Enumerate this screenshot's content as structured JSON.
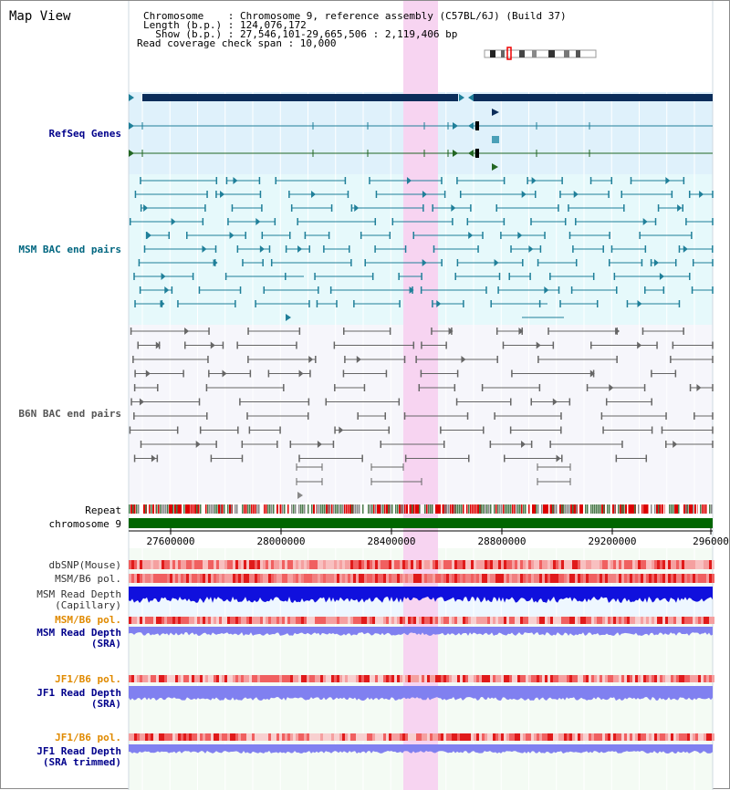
{
  "header": {
    "title": "Map View",
    "chromosome_line": "Chromosome    : Chromosome 9, reference assembly (C57BL/6J) (Build 37)",
    "length_line": "Length (b.p.) : 124,076,172",
    "show_line": "  Show (b.p.) : 27,546,101-29,665,506 : 2,119,406 bp",
    "coverage_line": "Read coverage check span : 10,000"
  },
  "tracks": {
    "refseq": "RefSeq Genes",
    "msm_bac": "MSM BAC end pairs",
    "b6n_bac": "B6N BAC end pairs",
    "repeat": "Repeat",
    "chromosome": "chromosome 9",
    "dbsnp": "dbSNP(Mouse)",
    "msm_b6_pol": "MSM/B6 pol.",
    "msm_depth_cap_1": "MSM Read Depth",
    "msm_depth_cap_2": "(Capillary)",
    "msm_b6_pol_sra": "MSM/B6 pol.",
    "msm_depth_sra_1": "MSM Read Depth",
    "msm_depth_sra_2": "(SRA)",
    "jf1_b6_pol_1": "JF1/B6 pol.",
    "jf1_depth_sra_1": "JF1 Read Depth",
    "jf1_depth_sra_2": "(SRA)",
    "jf1_b6_pol_2": "JF1/B6 pol.",
    "jf1_depth_trim_1": "JF1 Read Depth",
    "jf1_depth_trim_2": "(SRA trimmed)"
  },
  "axis": {
    "ticks": [
      "27600000",
      "28000000",
      "28400000",
      "28800000",
      "29200000",
      "296000"
    ]
  },
  "colors": {
    "refseq_bg": "#dff1fb",
    "msm_bg": "#e6f9fb",
    "highlight": "#f7d4f1",
    "gene_dark": "#0b2d5a",
    "msm_line": "#1f7f99",
    "b6n_line": "#666666",
    "chromosome_bar": "#006600",
    "pol_red": "#e83030",
    "depth_blue_dark": "#1010dd",
    "depth_blue_light": "#8080f0",
    "label_blue": "#00008b",
    "label_teal": "#006680",
    "label_orange": "#e08a00",
    "label_gray": "#555555"
  }
}
